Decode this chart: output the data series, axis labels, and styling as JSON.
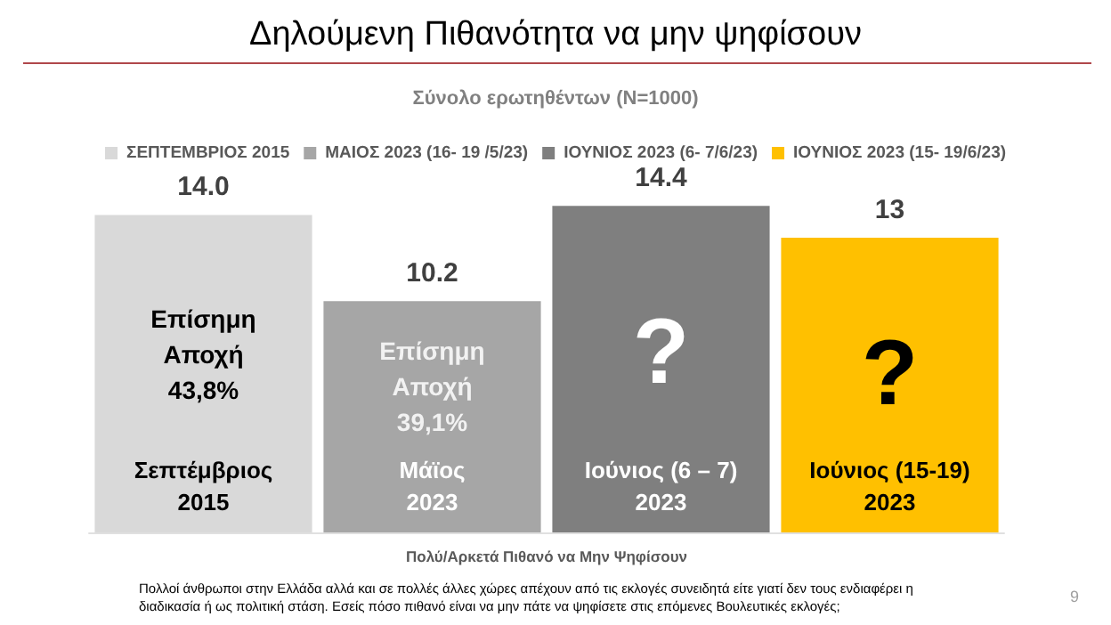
{
  "chart_data": {
    "type": "bar",
    "title": "Δηλούμενη Πιθανότητα να μην ψηφίσουν",
    "subtitle": "Σύνολο ερωτηθέντων (N=1000)",
    "xlabel": "Πολύ/Αρκετά Πιθανό να Μην Ψηφίσουν",
    "categories": [
      "Σεπτέμβριος 2015",
      "Μάϊος 2023",
      "Ιούνιος (6 – 7) 2023",
      "Ιούνιος (15-19) 2023"
    ],
    "stacked": true,
    "series": [
      {
        "name": "ΣΕΠΤΕΜΒΡΙΟΣ 2015",
        "color": "#d9d9d9",
        "values": [
          14.0,
          null,
          null,
          null
        ],
        "value_labels": [
          "14.0",
          null,
          null,
          null
        ]
      },
      {
        "name": "ΜΑΙΟΣ 2023 (16- 19 /5/23)",
        "color": "#a6a6a6",
        "values": [
          null,
          10.2,
          null,
          null
        ],
        "value_labels": [
          null,
          "10.2",
          null,
          null
        ]
      },
      {
        "name": "ΙΟΥΝΙΟΣ 2023 (6- 7/6/23)",
        "color": "#7f7f7f",
        "values": [
          null,
          null,
          14.4,
          null
        ],
        "value_labels": [
          null,
          null,
          "14.4",
          null
        ]
      },
      {
        "name": "ΙΟΥΝΙΟΣ 2023 (15- 19/6/23)",
        "color": "#ffc000",
        "values": [
          null,
          null,
          null,
          13
        ],
        "value_labels": [
          null,
          null,
          null,
          "13"
        ]
      }
    ],
    "tick_labels": "x",
    "grid": false,
    "legend": "top",
    "annotations": [
      "Επίσημη Αποχή 43,8%",
      "Επίσημη Αποχή 39,1%",
      "?",
      "?",
      "Πολλοί άνθρωποι στην Ελλάδα αλλά και σε πολλές άλλες χώρες απέχουν από τις εκλογές συνειδητά είτε γιατί δεν τους ενδιαφέρει η διαδικασία ή ως πολιτική στάση. Εσείς πόσο πιθανό είναι να μην πάτε να ψηφίσετε στις επόμενες Βουλευτικές εκλογές;",
      "9"
    ]
  }
}
